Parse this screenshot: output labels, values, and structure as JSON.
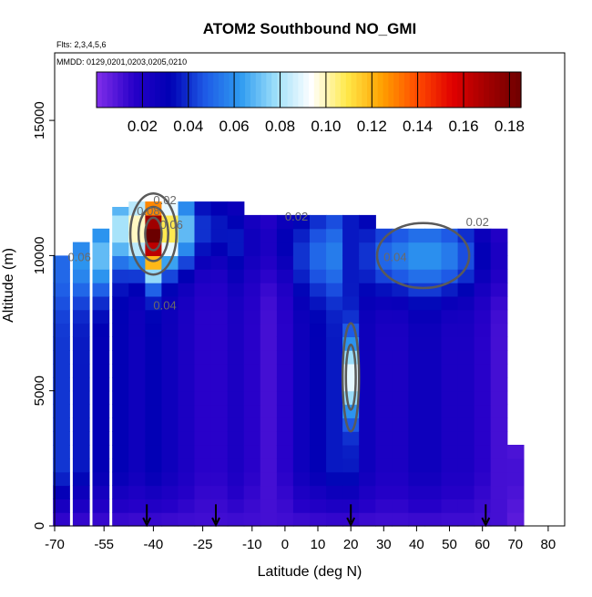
{
  "chart_data": {
    "type": "heatmap",
    "title": "ATOM2 Southbound NO_GMI",
    "flights_label": "Flts: 2,3,4,5,6",
    "dates_label": "MMDD: 0129,0201,0203,0205,0210",
    "xlabel": "Latitude (deg N)",
    "ylabel": "Altitude (m)",
    "xlim": [
      -70,
      85
    ],
    "ylim": [
      0,
      17500
    ],
    "x_ticks": [
      -70,
      -55,
      -40,
      -25,
      -10,
      0,
      10,
      20,
      30,
      40,
      50,
      60,
      70,
      80
    ],
    "x_tick_labels": [
      "-70",
      "-55",
      "-40",
      "-25",
      "-10",
      "0",
      "10",
      "20",
      "30",
      "40",
      "50",
      "60",
      "70",
      "80"
    ],
    "y_ticks": [
      0,
      5000,
      10000,
      15000
    ],
    "y_tick_labels": [
      "0",
      "5000",
      "10000",
      "15000"
    ],
    "colorbar": {
      "range": [
        0,
        0.185
      ],
      "tick_values": [
        0.02,
        0.04,
        0.06,
        0.08,
        0.1,
        0.12,
        0.14,
        0.16,
        0.18
      ],
      "tick_labels": [
        "0.02",
        "0.04",
        "0.06",
        "0.08",
        "0.10",
        "0.12",
        "0.14",
        "0.16",
        "0.18"
      ],
      "colors": [
        "#7B2BE8",
        "#2600C8",
        "#0000B4",
        "#1E5AE6",
        "#2E9BF0",
        "#9FE0FA",
        "#FFFFFF",
        "#FFE94A",
        "#FFA000",
        "#FF4A00",
        "#E00000",
        "#A00000",
        "#6A0000"
      ]
    },
    "contour_labels": [
      "0.02",
      "0.02",
      "0.02",
      "0.04",
      "0.04",
      "0.06",
      "0.06",
      "0.08"
    ],
    "flight_markers_latitude": [
      -42,
      -21,
      20,
      61
    ],
    "columns": [
      {
        "lat": -68,
        "top": 10000,
        "mid": 0.04,
        "peak": 0.05,
        "peak_alt": 9500
      },
      {
        "lat": -62,
        "top": 10500,
        "mid": 0.035,
        "peak": 0.06,
        "peak_alt": 9800
      },
      {
        "lat": -56,
        "top": 11000,
        "mid": 0.03,
        "peak": 0.07,
        "peak_alt": 10000
      },
      {
        "lat": -50,
        "top": 11800,
        "mid": 0.03,
        "peak": 0.08,
        "peak_alt": 11000
      },
      {
        "lat": -45,
        "top": 12000,
        "mid": 0.025,
        "peak": 0.1,
        "peak_alt": 11000
      },
      {
        "lat": -40,
        "top": 12000,
        "mid": 0.03,
        "peak": 0.185,
        "peak_alt": 10800
      },
      {
        "lat": -35,
        "top": 12000,
        "mid": 0.025,
        "peak": 0.11,
        "peak_alt": 11000
      },
      {
        "lat": -30,
        "top": 12000,
        "mid": 0.02,
        "peak": 0.07,
        "peak_alt": 11000
      },
      {
        "lat": -25,
        "top": 12000,
        "mid": 0.015,
        "peak": 0.04,
        "peak_alt": 11000
      },
      {
        "lat": -20,
        "top": 12000,
        "mid": 0.015,
        "peak": 0.035,
        "peak_alt": 11000
      },
      {
        "lat": -15,
        "top": 12000,
        "mid": 0.02,
        "peak": 0.035,
        "peak_alt": 10500
      },
      {
        "lat": -10,
        "top": 11500,
        "mid": 0.015,
        "peak": 0.025,
        "peak_alt": 10500
      },
      {
        "lat": -5,
        "top": 11500,
        "mid": 0.01,
        "peak": 0.02,
        "peak_alt": 10500
      },
      {
        "lat": 0,
        "top": 11500,
        "mid": 0.015,
        "peak": 0.03,
        "peak_alt": 10500
      },
      {
        "lat": 5,
        "top": 11500,
        "mid": 0.025,
        "peak": 0.04,
        "peak_alt": 10000
      },
      {
        "lat": 10,
        "top": 11500,
        "mid": 0.03,
        "peak": 0.05,
        "peak_alt": 10000
      },
      {
        "lat": 15,
        "top": 11500,
        "mid": 0.035,
        "peak": 0.055,
        "peak_alt": 10000
      },
      {
        "lat": 20,
        "top": 11500,
        "mid": 0.035,
        "peak": 0.09,
        "peak_alt": 5500
      },
      {
        "lat": 25,
        "top": 11500,
        "mid": 0.025,
        "peak": 0.04,
        "peak_alt": 10000
      },
      {
        "lat": 30,
        "top": 11000,
        "mid": 0.02,
        "peak": 0.05,
        "peak_alt": 10000
      },
      {
        "lat": 35,
        "top": 11000,
        "mid": 0.02,
        "peak": 0.055,
        "peak_alt": 10000
      },
      {
        "lat": 40,
        "top": 11000,
        "mid": 0.025,
        "peak": 0.06,
        "peak_alt": 10000
      },
      {
        "lat": 45,
        "top": 11000,
        "mid": 0.025,
        "peak": 0.06,
        "peak_alt": 10000
      },
      {
        "lat": 50,
        "top": 11000,
        "mid": 0.02,
        "peak": 0.055,
        "peak_alt": 10000
      },
      {
        "lat": 55,
        "top": 11000,
        "mid": 0.02,
        "peak": 0.045,
        "peak_alt": 10000
      },
      {
        "lat": 60,
        "top": 11000,
        "mid": 0.015,
        "peak": 0.03,
        "peak_alt": 10000
      },
      {
        "lat": 65,
        "top": 11000,
        "mid": 0.01,
        "peak": 0.02,
        "peak_alt": 10000
      },
      {
        "lat": 70,
        "top": 3000,
        "mid": 0.005,
        "peak": 0.01,
        "peak_alt": 2000
      }
    ]
  }
}
